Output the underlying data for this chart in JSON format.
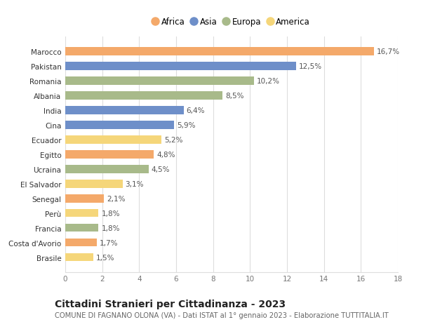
{
  "countries": [
    "Brasile",
    "Costa d'Avorio",
    "Francia",
    "Perù",
    "Senegal",
    "El Salvador",
    "Ucraina",
    "Egitto",
    "Ecuador",
    "Cina",
    "India",
    "Albania",
    "Romania",
    "Pakistan",
    "Marocco"
  ],
  "values": [
    1.5,
    1.7,
    1.8,
    1.8,
    2.1,
    3.1,
    4.5,
    4.8,
    5.2,
    5.9,
    6.4,
    8.5,
    10.2,
    12.5,
    16.7
  ],
  "continents": [
    "America",
    "Africa",
    "Europa",
    "America",
    "Africa",
    "America",
    "Europa",
    "Africa",
    "America",
    "Asia",
    "Asia",
    "Europa",
    "Europa",
    "Asia",
    "Africa"
  ],
  "continent_colors": {
    "Africa": "#F4A96A",
    "Asia": "#6E8FC9",
    "Europa": "#A8BA8A",
    "America": "#F5D67A"
  },
  "legend_order": [
    "Africa",
    "Asia",
    "Europa",
    "America"
  ],
  "title": "Cittadini Stranieri per Cittadinanza - 2023",
  "subtitle": "COMUNE DI FAGNANO OLONA (VA) - Dati ISTAT al 1° gennaio 2023 - Elaborazione TUTTITALIA.IT",
  "xlim": [
    0,
    18
  ],
  "xticks": [
    0,
    2,
    4,
    6,
    8,
    10,
    12,
    14,
    16,
    18
  ],
  "bg_color": "#ffffff",
  "grid_color": "#dddddd",
  "bar_label_color": "#555555",
  "label_fontsize": 7.5,
  "title_fontsize": 10,
  "subtitle_fontsize": 7.2,
  "tick_fontsize": 7.5,
  "legend_fontsize": 8.5
}
